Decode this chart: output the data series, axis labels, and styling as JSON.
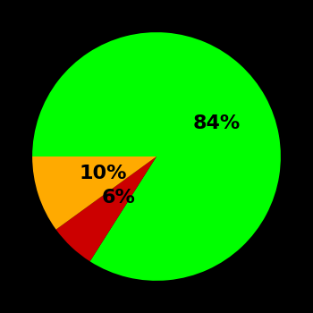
{
  "slices": [
    84,
    6,
    10
  ],
  "colors": [
    "#00ff00",
    "#cc0000",
    "#ffaa00"
  ],
  "labels": [
    "84%",
    "6%",
    "10%"
  ],
  "background_color": "#000000",
  "startangle": 180,
  "figsize": [
    3.5,
    3.5
  ],
  "dpi": 100,
  "label_fontsize": 16,
  "label_fontweight": "bold",
  "label_radii": [
    0.55,
    0.45,
    0.45
  ]
}
